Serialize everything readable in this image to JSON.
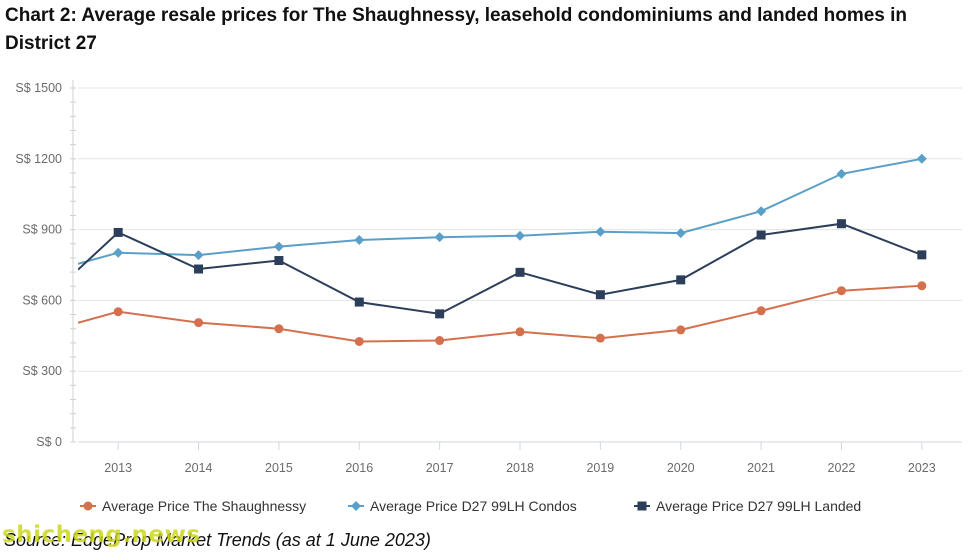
{
  "title": "Chart 2: Average resale prices for The Shaughnessy, leasehold condominiums and landed homes in District 27",
  "source": "Source: EdgeProp Market Trends (as at 1 June 2023)",
  "watermark": "shicheng.news",
  "chart_data": {
    "type": "line",
    "title": "Chart 2: Average resale prices for The Shaughnessy, leasehold condominiums and landed homes in District 27",
    "xlabel": "",
    "ylabel": "",
    "x": [
      "2013",
      "2014",
      "2015",
      "2016",
      "2017",
      "2018",
      "2019",
      "2020",
      "2021",
      "2022",
      "2023"
    ],
    "x_extended": [
      2012.5,
      2023.5
    ],
    "ylim": [
      0,
      1500
    ],
    "yticks": [
      0,
      300,
      600,
      900,
      1200,
      1500
    ],
    "ytick_labels": [
      "S$ 0",
      "S$ 300",
      "S$ 600",
      "S$ 900",
      "S$ 1200",
      "S$ 1500"
    ],
    "grid": true,
    "legend_position": "bottom",
    "series": [
      {
        "name": "Average Price The Shaughnessy",
        "color": "#d4704e",
        "marker": "circle",
        "start_value": 505,
        "values": [
          552,
          506,
          480,
          426,
          430,
          467,
          440,
          475,
          556,
          641,
          662
        ]
      },
      {
        "name": "Average Price D27 99LH Condos",
        "color": "#5a9fc7",
        "marker": "diamond",
        "start_value": 755,
        "values": [
          802,
          792,
          828,
          856,
          868,
          874,
          891,
          885,
          978,
          1136,
          1200
        ]
      },
      {
        "name": "Average Price D27 99LH Landed",
        "color": "#2c3e5a",
        "marker": "square",
        "start_value": 730,
        "values": [
          888,
          733,
          769,
          593,
          543,
          719,
          624,
          687,
          877,
          925,
          793
        ]
      }
    ]
  }
}
